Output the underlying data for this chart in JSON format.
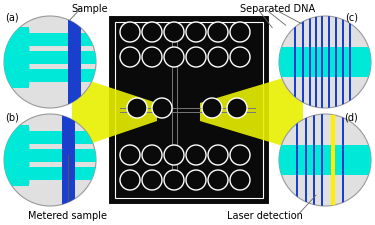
{
  "fig_width": 3.75,
  "fig_height": 2.25,
  "dpi": 100,
  "bg_color": "#ffffff",
  "title_sample": "Sample",
  "title_separated_dna": "Separated DNA",
  "label_a": "(a)",
  "label_b": "(b)",
  "label_c": "(c)",
  "label_d": "(d)",
  "label_metered": "Metered sample",
  "label_laser": "Laser detection",
  "chip_bg": "#0a0a0a",
  "chip_border": "#ffffff",
  "cyan_color": "#00e8d8",
  "blue_color": "#1a3fcc",
  "yellow_beam": "#e8f000",
  "circle_bg": "#e0e0e0",
  "circle_edge": "#999999",
  "font_size": 7
}
